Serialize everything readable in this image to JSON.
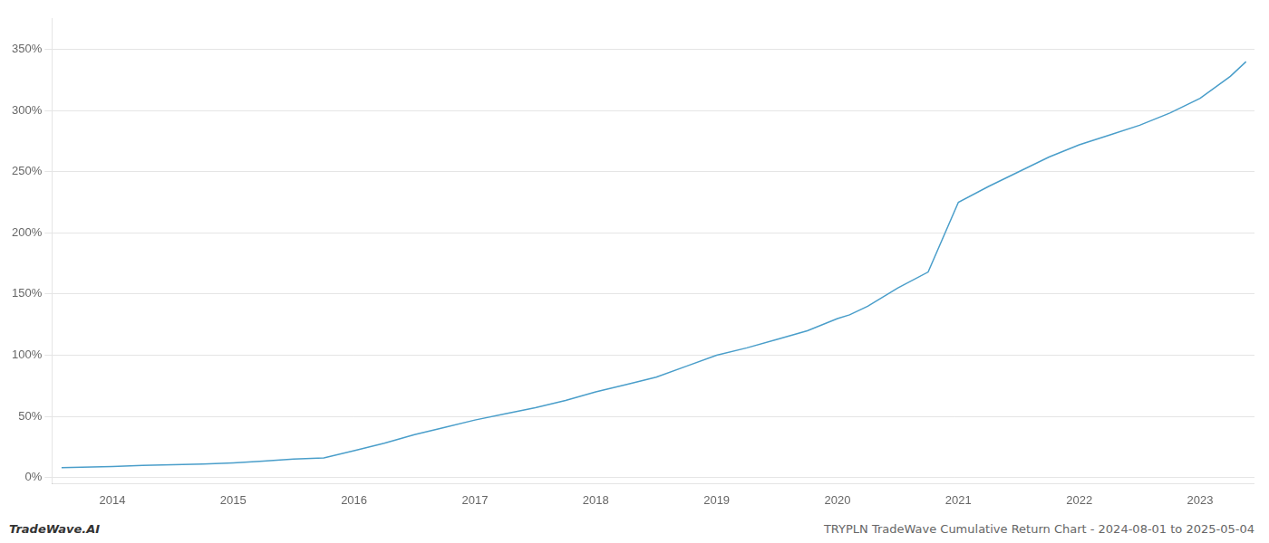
{
  "chart_data": {
    "type": "line",
    "title": "TRYPLN TradeWave Cumulative Return Chart - 2024-08-01 to 2025-05-04",
    "annotations": [
      "TradeWave.AI"
    ],
    "color": "#4a9eca",
    "grid": "y",
    "x": [
      2013.58,
      2014.0,
      2014.25,
      2014.5,
      2014.75,
      2015.0,
      2015.25,
      2015.5,
      2015.75,
      2016.0,
      2016.25,
      2016.5,
      2016.75,
      2017.0,
      2017.25,
      2017.5,
      2017.75,
      2018.0,
      2018.25,
      2018.5,
      2018.75,
      2019.0,
      2019.25,
      2019.5,
      2019.75,
      2020.0,
      2020.1,
      2020.25,
      2020.5,
      2020.75,
      2021.0,
      2021.25,
      2021.5,
      2021.75,
      2022.0,
      2022.25,
      2022.5,
      2022.75,
      2023.0,
      2023.25,
      2023.38
    ],
    "values": [
      8,
      9,
      10,
      10.5,
      11,
      12,
      13.5,
      15,
      16,
      22,
      28,
      35,
      41,
      47,
      52,
      57,
      63,
      70,
      76,
      82,
      91,
      100,
      106,
      113,
      120,
      130,
      133,
      140,
      155,
      168,
      225,
      238,
      250,
      262,
      272,
      280,
      288,
      298,
      310,
      328,
      340
    ],
    "xlim": [
      2013.5,
      2023.45
    ],
    "xticks": [
      2014,
      2015,
      2016,
      2017,
      2018,
      2019,
      2020,
      2021,
      2022,
      2023
    ],
    "ylim": [
      -5,
      375
    ],
    "yticks": [
      {
        "value": 0,
        "label": "0%"
      },
      {
        "value": 50,
        "label": "50%"
      },
      {
        "value": 100,
        "label": "100%"
      },
      {
        "value": 150,
        "label": "150%"
      },
      {
        "value": 200,
        "label": "200%"
      },
      {
        "value": 250,
        "label": "250%"
      },
      {
        "value": 300,
        "label": "300%"
      },
      {
        "value": 350,
        "label": "350%"
      }
    ]
  }
}
